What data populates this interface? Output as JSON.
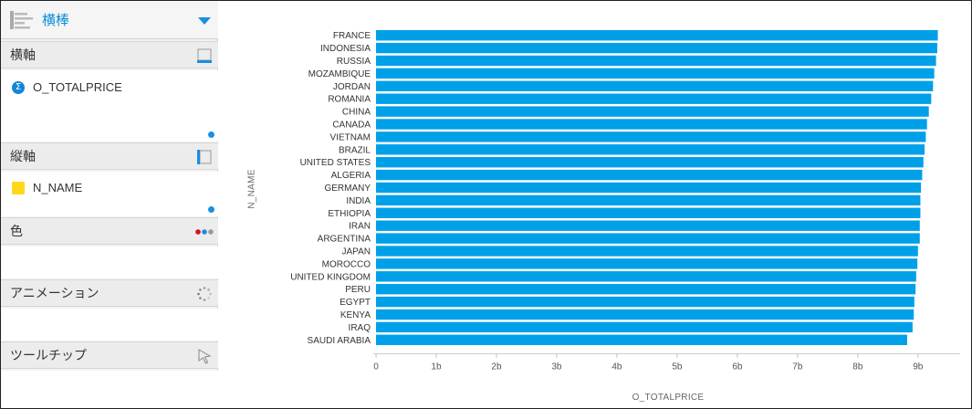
{
  "panel": {
    "chart_type": {
      "label": "横棒",
      "icon": "horizontal-bar-chart-icon"
    },
    "sections": {
      "x_axis": {
        "label": "横軸",
        "icon": "x-axis-icon",
        "field": "O_TOTALPRICE",
        "field_icon": "sigma-measure-icon"
      },
      "y_axis": {
        "label": "縦軸",
        "icon": "y-axis-icon",
        "field": "N_NAME",
        "field_icon": "dimension-square-icon"
      },
      "color": {
        "label": "色",
        "icon": "color-dots-icon"
      },
      "animation": {
        "label": "アニメーション",
        "icon": "spinner-icon"
      },
      "tooltip": {
        "label": "ツールチップ",
        "icon": "cursor-arrow-icon"
      }
    }
  },
  "colors": {
    "bar": "#00a0e9",
    "accent": "#1a8ee0",
    "dimension": "#ffd81a"
  },
  "chart_data": {
    "type": "bar",
    "orientation": "horizontal",
    "categories": [
      "FRANCE",
      "INDONESIA",
      "RUSSIA",
      "MOZAMBIQUE",
      "JORDAN",
      "ROMANIA",
      "CHINA",
      "CANADA",
      "VIETNAM",
      "BRAZIL",
      "UNITED STATES",
      "ALGERIA",
      "GERMANY",
      "INDIA",
      "ETHIOPIA",
      "IRAN",
      "ARGENTINA",
      "JAPAN",
      "MOROCCO",
      "UNITED KINGDOM",
      "PERU",
      "EGYPT",
      "KENYA",
      "IRAQ",
      "SAUDI ARABIA"
    ],
    "values": [
      9.33,
      9.32,
      9.3,
      9.27,
      9.25,
      9.22,
      9.18,
      9.15,
      9.13,
      9.11,
      9.09,
      9.07,
      9.05,
      9.04,
      9.04,
      9.03,
      9.03,
      9.0,
      8.99,
      8.97,
      8.96,
      8.94,
      8.93,
      8.91,
      8.82
    ],
    "value_unit": "b (billions)",
    "xlabel": "O_TOTALPRICE",
    "ylabel": "N_NAME",
    "xlim": [
      0,
      9.7
    ],
    "xticks": [
      0,
      1,
      2,
      3,
      4,
      5,
      6,
      7,
      8,
      9
    ],
    "xtick_labels": [
      "0",
      "1b",
      "2b",
      "3b",
      "4b",
      "5b",
      "6b",
      "7b",
      "8b",
      "9b"
    ],
    "grid": false,
    "legend": "none"
  }
}
